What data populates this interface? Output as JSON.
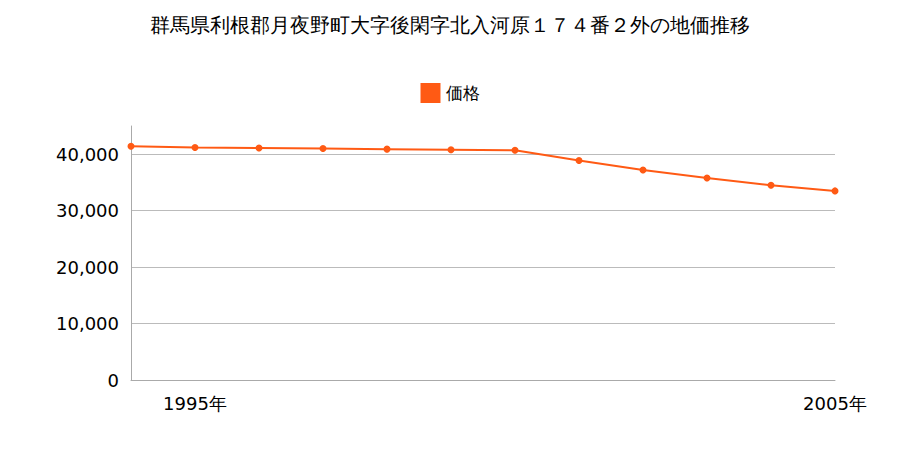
{
  "chart_data": {
    "type": "line",
    "title": "群馬県利根郡月夜野町大字後閑字北入河原１７４番２外の地価推移",
    "categories": [
      null,
      "1995年",
      null,
      null,
      null,
      null,
      null,
      null,
      null,
      null,
      null,
      "2005年"
    ],
    "series": [
      {
        "name": "価格",
        "color": "#ff5a14",
        "marker": "circle",
        "values": [
          41400,
          41200,
          41100,
          41000,
          40900,
          40800,
          40700,
          38900,
          37200,
          35800,
          34500,
          33500
        ]
      }
    ],
    "ylim": [
      0,
      45000
    ],
    "yticks": [
      0,
      {
        "value": 10000,
        "label": "10,000"
      },
      {
        "value": 20000,
        "label": "20,000"
      },
      {
        "value": 30000,
        "label": "30,000"
      },
      {
        "value": 40000,
        "label": "40,000"
      }
    ],
    "grid": true,
    "legend": "top"
  }
}
